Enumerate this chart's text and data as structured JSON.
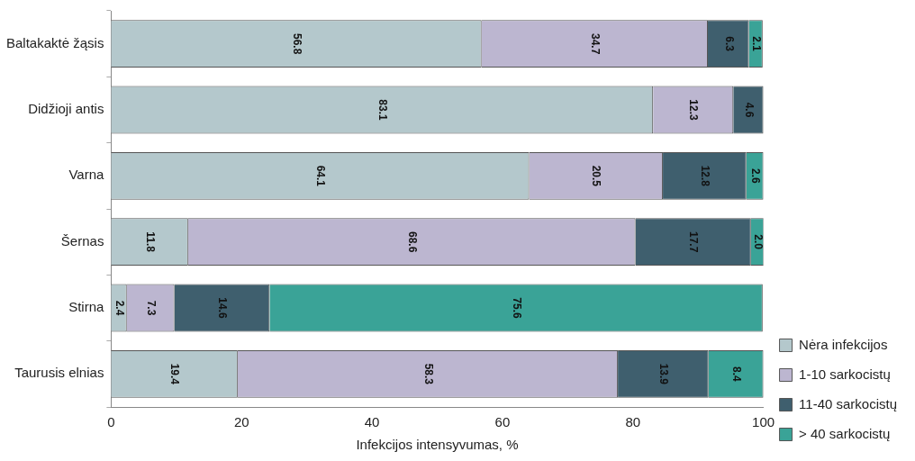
{
  "chart_data": {
    "type": "bar",
    "orientation": "horizontal",
    "stacked": true,
    "xlabel": "Infekcijos intensyvumas, %",
    "categories": [
      "Baltakaktė žąsis",
      "Didžioji antis",
      "Varna",
      "Šernas",
      "Stirna",
      "Taurusis elnias"
    ],
    "xlim": [
      0,
      100
    ],
    "xticks": [
      0,
      20,
      40,
      60,
      80,
      100
    ],
    "grid": false,
    "legend": "right",
    "series": [
      {
        "name": "Nėra infekcijos",
        "color": "#b4c8cc",
        "values": [
          56.8,
          83.1,
          64.1,
          11.8,
          2.4,
          19.4
        ],
        "value_labels": [
          "56.8",
          "83.1",
          "64.1",
          "11.8",
          "2.4",
          "19.4"
        ]
      },
      {
        "name": "1-10 sarkocistų",
        "color": "#bcb6d0",
        "values": [
          34.7,
          12.3,
          20.5,
          68.6,
          7.3,
          58.3
        ],
        "value_labels": [
          "34.7",
          "12.3",
          "20.5",
          "68.6",
          "7.3",
          "58.3"
        ]
      },
      {
        "name": "11-40 sarkocistų",
        "color": "#3f5f6e",
        "values": [
          6.3,
          4.6,
          12.8,
          17.7,
          14.6,
          13.9
        ],
        "value_labels": [
          "6.3",
          "4.6",
          "12.8",
          "17.7",
          "14.6",
          "13.9"
        ]
      },
      {
        "name": "> 40 sarkocistų",
        "color": "#3aa397",
        "values": [
          2.1,
          null,
          2.6,
          2.0,
          75.6,
          8.4
        ],
        "value_labels": [
          "2.1",
          null,
          "2.6",
          "2.0",
          "75.6",
          "8.4"
        ]
      }
    ]
  }
}
